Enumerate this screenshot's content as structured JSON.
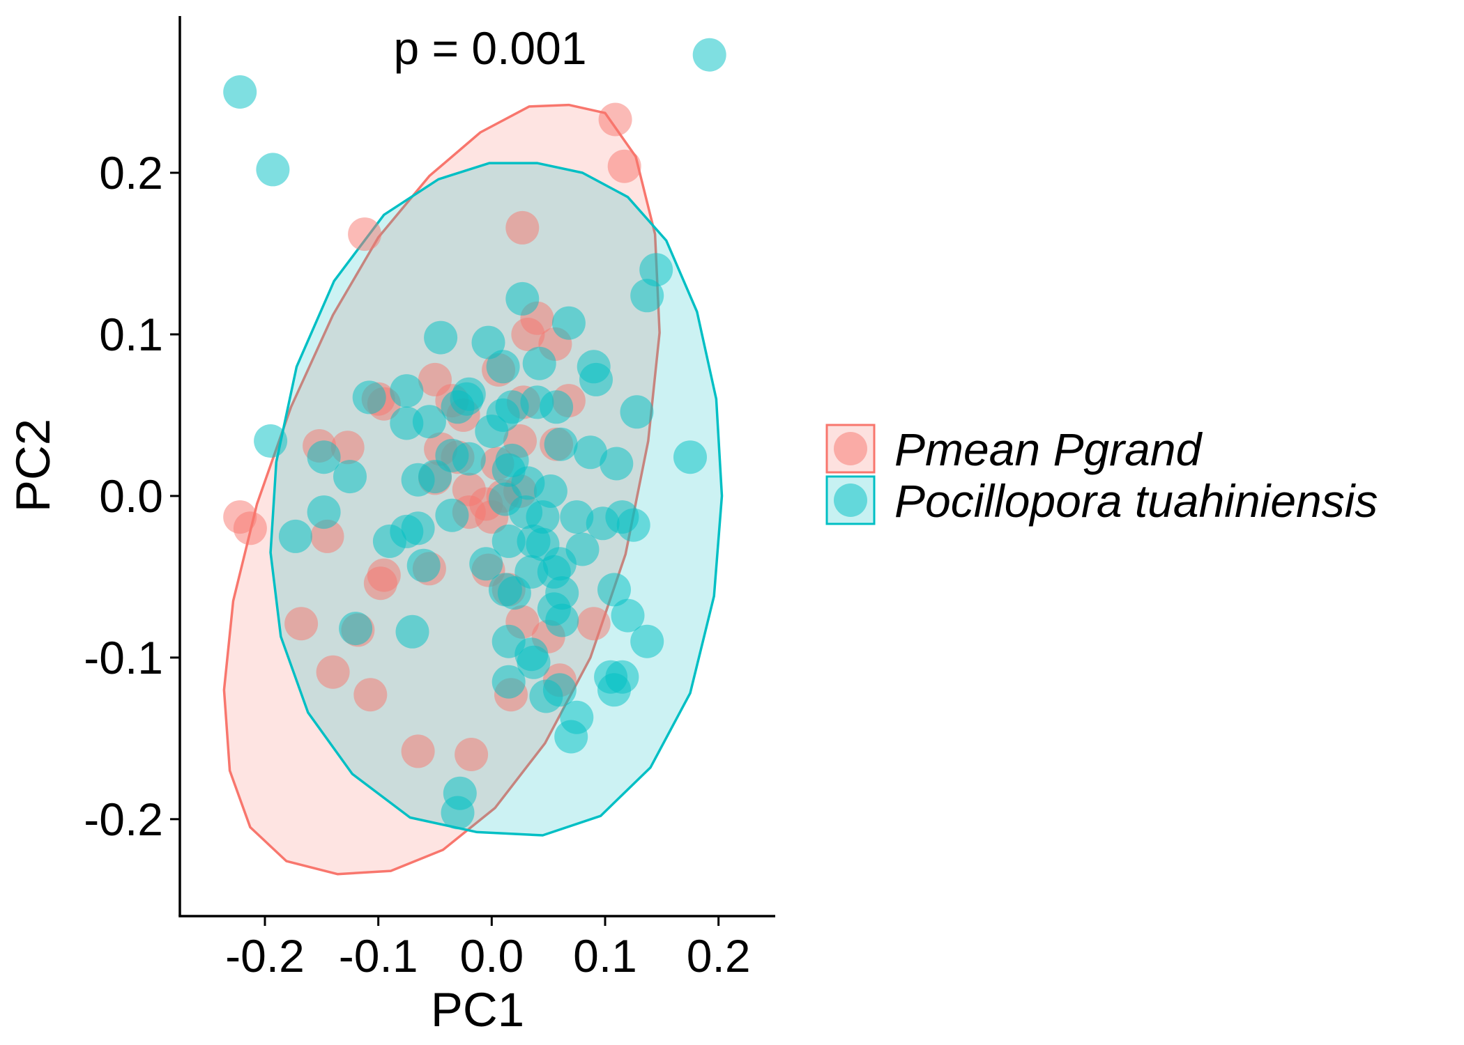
{
  "chart_data": {
    "type": "scatter",
    "title": "",
    "annotation": "p = 0.001",
    "xlabel": "PC1",
    "ylabel": "PC2",
    "xlim": [
      -0.275,
      0.25
    ],
    "ylim": [
      -0.26,
      0.297
    ],
    "xticks": [
      -0.2,
      -0.1,
      0.0,
      0.1,
      0.2
    ],
    "xtick_labels": [
      "-0.2",
      "-0.1",
      "0.0",
      "0.1",
      "0.2"
    ],
    "yticks": [
      -0.2,
      -0.1,
      0.0,
      0.1,
      0.2
    ],
    "ytick_labels": [
      "-0.2",
      "-0.1",
      "0.0",
      "0.1",
      "0.2"
    ],
    "grid": false,
    "legend_position": "right",
    "series": [
      {
        "name": "Pmean Pgrand",
        "color": "#F8766D",
        "points": [
          [
            0.109,
            0.233
          ],
          [
            0.117,
            0.204
          ],
          [
            0.027,
            0.166
          ],
          [
            -0.112,
            0.162
          ],
          [
            0.04,
            0.11
          ],
          [
            0.032,
            0.1
          ],
          [
            0.056,
            0.094
          ],
          [
            0.006,
            0.078
          ],
          [
            -0.05,
            0.072
          ],
          [
            -0.1,
            0.06
          ],
          [
            -0.095,
            0.057
          ],
          [
            0.068,
            0.059
          ],
          [
            0.028,
            0.058
          ],
          [
            -0.035,
            0.059
          ],
          [
            -0.025,
            0.05
          ],
          [
            0.025,
            0.034
          ],
          [
            0.057,
            0.032
          ],
          [
            -0.152,
            0.031
          ],
          [
            -0.127,
            0.03
          ],
          [
            -0.045,
            0.029
          ],
          [
            -0.03,
            0.024
          ],
          [
            0.005,
            0.02
          ],
          [
            -0.05,
            0.011
          ],
          [
            -0.02,
            0.004
          ],
          [
            0.025,
            0.003
          ],
          [
            0.01,
            0.0
          ],
          [
            -0.005,
            -0.005
          ],
          [
            -0.02,
            -0.01
          ],
          [
            0.0,
            -0.013
          ],
          [
            -0.222,
            -0.013
          ],
          [
            -0.213,
            -0.02
          ],
          [
            -0.145,
            -0.025
          ],
          [
            -0.095,
            -0.049
          ],
          [
            -0.055,
            -0.045
          ],
          [
            -0.003,
            -0.046
          ],
          [
            -0.098,
            -0.054
          ],
          [
            0.015,
            -0.058
          ],
          [
            -0.168,
            -0.079
          ],
          [
            0.027,
            -0.078
          ],
          [
            0.09,
            -0.079
          ],
          [
            -0.118,
            -0.083
          ],
          [
            0.05,
            -0.087
          ],
          [
            -0.14,
            -0.109
          ],
          [
            0.06,
            -0.114
          ],
          [
            -0.107,
            -0.123
          ],
          [
            0.017,
            -0.123
          ],
          [
            -0.065,
            -0.158
          ],
          [
            -0.018,
            -0.16
          ]
        ]
      },
      {
        "name": "Pocillopora tuahiniensis",
        "color": "#00BFC4",
        "points": [
          [
            0.192,
            0.273
          ],
          [
            -0.222,
            0.25
          ],
          [
            -0.193,
            0.202
          ],
          [
            0.145,
            0.14
          ],
          [
            0.137,
            0.124
          ],
          [
            0.027,
            0.122
          ],
          [
            0.068,
            0.107
          ],
          [
            -0.045,
            0.098
          ],
          [
            -0.003,
            0.095
          ],
          [
            0.01,
            0.08
          ],
          [
            0.042,
            0.082
          ],
          [
            0.09,
            0.08
          ],
          [
            0.092,
            0.072
          ],
          [
            -0.075,
            0.065
          ],
          [
            -0.108,
            0.061
          ],
          [
            -0.02,
            0.063
          ],
          [
            -0.022,
            0.06
          ],
          [
            -0.03,
            0.055
          ],
          [
            0.04,
            0.058
          ],
          [
            0.057,
            0.055
          ],
          [
            0.018,
            0.055
          ],
          [
            0.01,
            0.05
          ],
          [
            0.128,
            0.052
          ],
          [
            -0.075,
            0.045
          ],
          [
            -0.055,
            0.046
          ],
          [
            0.0,
            0.04
          ],
          [
            -0.195,
            0.034
          ],
          [
            -0.148,
            0.024
          ],
          [
            0.061,
            0.032
          ],
          [
            0.087,
            0.027
          ],
          [
            0.175,
            0.024
          ],
          [
            -0.035,
            0.025
          ],
          [
            -0.02,
            0.023
          ],
          [
            0.018,
            0.022
          ],
          [
            0.11,
            0.02
          ],
          [
            -0.125,
            0.012
          ],
          [
            0.015,
            0.016
          ],
          [
            -0.065,
            0.01
          ],
          [
            -0.05,
            0.012
          ],
          [
            0.032,
            0.008
          ],
          [
            0.052,
            0.003
          ],
          [
            0.012,
            -0.002
          ],
          [
            -0.148,
            -0.01
          ],
          [
            -0.035,
            -0.012
          ],
          [
            0.03,
            -0.01
          ],
          [
            0.045,
            -0.013
          ],
          [
            0.075,
            -0.013
          ],
          [
            0.098,
            -0.017
          ],
          [
            0.115,
            -0.013
          ],
          [
            0.125,
            -0.018
          ],
          [
            -0.075,
            -0.022
          ],
          [
            -0.065,
            -0.02
          ],
          [
            -0.173,
            -0.025
          ],
          [
            -0.09,
            -0.028
          ],
          [
            0.015,
            -0.028
          ],
          [
            0.037,
            -0.028
          ],
          [
            0.045,
            -0.03
          ],
          [
            0.08,
            -0.033
          ],
          [
            -0.005,
            -0.042
          ],
          [
            0.06,
            -0.042
          ],
          [
            -0.06,
            -0.043
          ],
          [
            0.055,
            -0.047
          ],
          [
            0.035,
            -0.047
          ],
          [
            0.012,
            -0.058
          ],
          [
            0.02,
            -0.06
          ],
          [
            0.108,
            -0.058
          ],
          [
            0.062,
            -0.06
          ],
          [
            0.055,
            -0.07
          ],
          [
            -0.07,
            -0.084
          ],
          [
            -0.12,
            -0.082
          ],
          [
            0.062,
            -0.077
          ],
          [
            0.12,
            -0.074
          ],
          [
            0.015,
            -0.09
          ],
          [
            0.035,
            -0.098
          ],
          [
            0.137,
            -0.09
          ],
          [
            0.037,
            -0.103
          ],
          [
            0.105,
            -0.112
          ],
          [
            0.115,
            -0.112
          ],
          [
            0.015,
            -0.115
          ],
          [
            0.108,
            -0.12
          ],
          [
            0.06,
            -0.12
          ],
          [
            0.048,
            -0.124
          ],
          [
            0.075,
            -0.137
          ],
          [
            0.07,
            -0.149
          ],
          [
            -0.028,
            -0.184
          ],
          [
            -0.03,
            -0.196
          ]
        ]
      }
    ],
    "ellipses": [
      {
        "series": "Pmean Pgrand",
        "color": "#F8766D",
        "boundary": [
          [
            -0.089,
            -0.232
          ],
          [
            -0.043,
            -0.219
          ],
          [
            0.003,
            -0.193
          ],
          [
            0.047,
            -0.153
          ],
          [
            0.087,
            -0.1
          ],
          [
            0.118,
            -0.036
          ],
          [
            0.138,
            0.034
          ],
          [
            0.148,
            0.101
          ],
          [
            0.144,
            0.162
          ],
          [
            0.127,
            0.21
          ],
          [
            0.1,
            0.237
          ],
          [
            0.068,
            0.242
          ],
          [
            0.033,
            0.241
          ],
          [
            -0.01,
            0.225
          ],
          [
            -0.055,
            0.198
          ],
          [
            -0.1,
            0.16
          ],
          [
            -0.14,
            0.112
          ],
          [
            -0.177,
            0.055
          ],
          [
            -0.207,
            -0.005
          ],
          [
            -0.228,
            -0.065
          ],
          [
            -0.236,
            -0.12
          ],
          [
            -0.231,
            -0.17
          ],
          [
            -0.213,
            -0.205
          ],
          [
            -0.181,
            -0.226
          ],
          [
            -0.136,
            -0.234
          ]
        ]
      },
      {
        "series": "Pocillopora tuahiniensis",
        "color": "#00BFC4",
        "boundary": [
          [
            0.045,
            -0.21
          ],
          [
            0.096,
            -0.198
          ],
          [
            0.14,
            -0.168
          ],
          [
            0.175,
            -0.122
          ],
          [
            0.196,
            -0.062
          ],
          [
            0.203,
            0.0
          ],
          [
            0.198,
            0.06
          ],
          [
            0.181,
            0.114
          ],
          [
            0.154,
            0.158
          ],
          [
            0.12,
            0.185
          ],
          [
            0.08,
            0.2
          ],
          [
            0.04,
            0.206
          ],
          [
            -0.002,
            0.206
          ],
          [
            -0.047,
            0.196
          ],
          [
            -0.095,
            0.174
          ],
          [
            -0.139,
            0.133
          ],
          [
            -0.172,
            0.08
          ],
          [
            -0.19,
            0.021
          ],
          [
            -0.195,
            -0.035
          ],
          [
            -0.186,
            -0.087
          ],
          [
            -0.162,
            -0.134
          ],
          [
            -0.123,
            -0.172
          ],
          [
            -0.072,
            -0.199
          ],
          [
            -0.013,
            -0.208
          ]
        ]
      }
    ]
  }
}
